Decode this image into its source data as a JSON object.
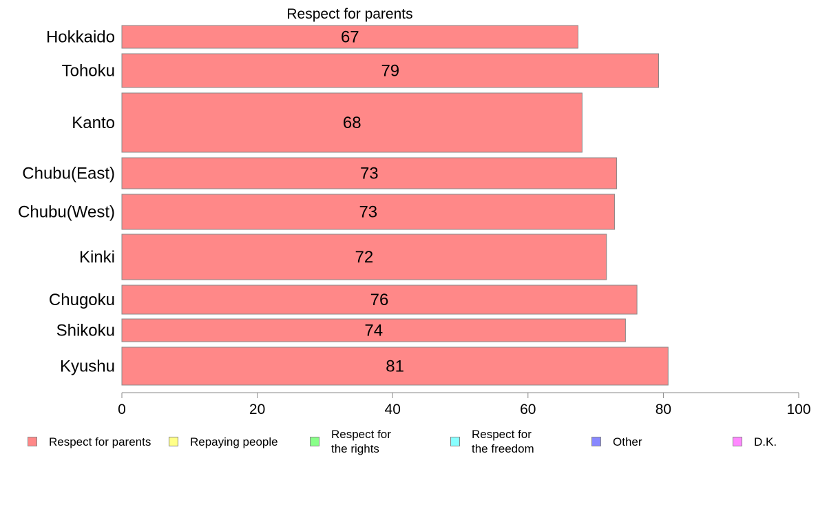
{
  "chart_data": {
    "type": "bar",
    "orientation": "horizontal",
    "title": "Respect for parents",
    "categories": [
      "Hokkaido",
      "Tohoku",
      "Kanto",
      "Chubu(East)",
      "Chubu(West)",
      "Kinki",
      "Chugoku",
      "Shikoku",
      "Kyushu"
    ],
    "values": [
      67.4,
      79.3,
      68.0,
      73.1,
      72.8,
      71.6,
      76.1,
      74.4,
      80.7
    ],
    "labels": [
      "67",
      "79",
      "68",
      "73",
      "73",
      "72",
      "76",
      "74",
      "81"
    ],
    "bar_color": "#ff8888",
    "bar_edge_color": "#888888",
    "xlim": [
      0,
      100
    ],
    "xticks": [
      "0",
      "20",
      "40",
      "60",
      "80",
      "100"
    ],
    "xlabel": "",
    "ylabel": "",
    "grid": false,
    "legend_position": "bottom",
    "legend": [
      {
        "label": "Respect for parents",
        "color": "#ff8888"
      },
      {
        "label": "Repaying people",
        "color": "#ffff88"
      },
      {
        "label": "Respect for the rights",
        "color": "#88ff88"
      },
      {
        "label": "Respect for the freedom",
        "color": "#88ffff"
      },
      {
        "label": "Other",
        "color": "#8888ff"
      },
      {
        "label": "D.K.",
        "color": "#ff88ff"
      }
    ]
  }
}
